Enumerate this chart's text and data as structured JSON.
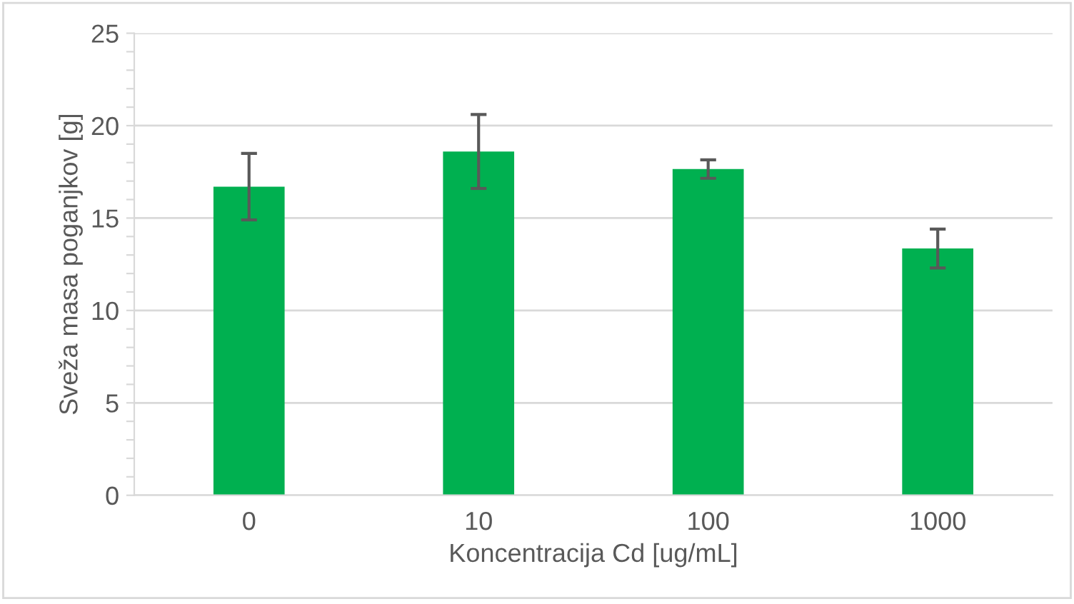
{
  "chart_data": {
    "type": "bar",
    "categories": [
      "0",
      "10",
      "100",
      "1000"
    ],
    "values": [
      16.7,
      18.6,
      17.65,
      13.35
    ],
    "errors": [
      1.8,
      2.0,
      0.5,
      1.05
    ],
    "color": "#00b050",
    "xlabel": "Koncentracija Cd [ug/mL]",
    "ylabel": "Sveža masa poganjkov [g]",
    "ylim": [
      0,
      25
    ],
    "yticks": [
      0,
      {
        "value": 1,
        "label": null
      },
      {
        "value": 2,
        "label": null
      },
      {
        "value": 3,
        "label": null
      },
      {
        "value": 4,
        "label": null
      },
      5,
      {
        "value": 6,
        "label": null
      },
      {
        "value": 7,
        "label": null
      },
      {
        "value": 8,
        "label": null
      },
      {
        "value": 9,
        "label": null
      },
      10,
      {
        "value": 11,
        "label": null
      },
      {
        "value": 12,
        "label": null
      },
      {
        "value": 13,
        "label": null
      },
      {
        "value": 14,
        "label": null
      },
      15,
      {
        "value": 16,
        "label": null
      },
      {
        "value": 17,
        "label": null
      },
      {
        "value": 18,
        "label": null
      },
      {
        "value": 19,
        "label": null
      },
      20,
      {
        "value": 21,
        "label": null
      },
      {
        "value": 22,
        "label": null
      },
      {
        "value": 23,
        "label": null
      },
      {
        "value": 24,
        "label": null
      },
      25
    ],
    "grid": "y"
  }
}
